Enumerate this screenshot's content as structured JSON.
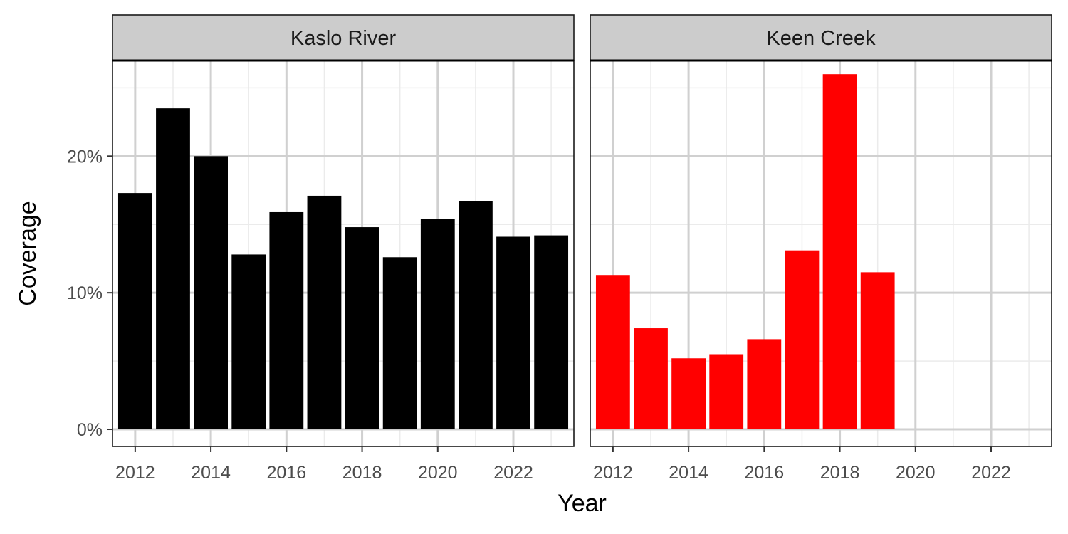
{
  "chart_data": {
    "type": "bar",
    "xlabel": "Year",
    "ylabel": "Coverage",
    "ylim": [
      0,
      0.27
    ],
    "y_ticks": [
      {
        "value": 0,
        "label": "0%"
      },
      {
        "value": 0.1,
        "label": "10%"
      },
      {
        "value": 0.2,
        "label": "20%"
      }
    ],
    "x_ticks": [
      2012,
      2014,
      2016,
      2018,
      2020,
      2022
    ],
    "xlim": [
      2011.4,
      2023.6
    ],
    "grid": true,
    "panels": [
      {
        "name": "Kaslo River",
        "color": "#000000",
        "x": [
          2012,
          2013,
          2014,
          2015,
          2016,
          2017,
          2018,
          2019,
          2020,
          2021,
          2022,
          2023
        ],
        "values": [
          0.173,
          0.235,
          0.2,
          0.128,
          0.159,
          0.171,
          0.148,
          0.126,
          0.154,
          0.167,
          0.141,
          0.142
        ]
      },
      {
        "name": "Keen Creek",
        "color": "#ff0000",
        "x": [
          2012,
          2013,
          2014,
          2015,
          2016,
          2017,
          2018,
          2019
        ],
        "values": [
          0.113,
          0.074,
          0.052,
          0.055,
          0.066,
          0.131,
          0.26,
          0.115
        ]
      }
    ]
  }
}
